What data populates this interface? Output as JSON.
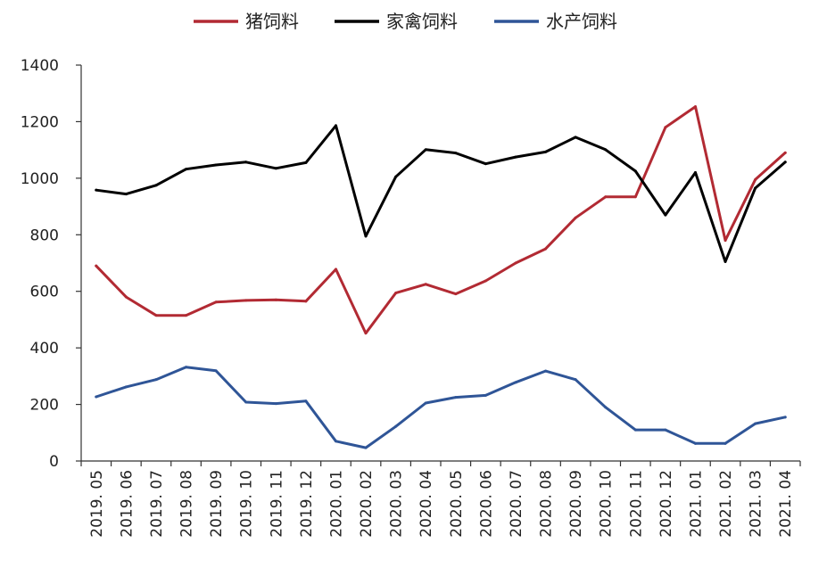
{
  "chart_data": {
    "type": "line",
    "title": "",
    "xlabel": "",
    "ylabel": "",
    "ylim": [
      0,
      1400
    ],
    "yticks": [
      0,
      200,
      400,
      600,
      800,
      1000,
      1200,
      1400
    ],
    "grid": false,
    "legend_position": "top-center",
    "categories": [
      "2019.05",
      "2019.06",
      "2019.07",
      "2019.08",
      "2019.09",
      "2019.10",
      "2019.11",
      "2019.12",
      "2020.01",
      "2020.02",
      "2020.03",
      "2020.04",
      "2020.05",
      "2020.06",
      "2020.07",
      "2020.08",
      "2020.09",
      "2020.10",
      "2020.11",
      "2020.12",
      "2021.01",
      "2021.02",
      "2021.03",
      "2021.04"
    ],
    "category_labels": [
      "2019. 05",
      "2019. 06",
      "2019. 07",
      "2019. 08",
      "2019. 09",
      "2019. 10",
      "2019. 11",
      "2019. 12",
      "2020. 01",
      "2020. 02",
      "2020. 03",
      "2020. 04",
      "2020. 05",
      "2020. 06",
      "2020. 07",
      "2020. 08",
      "2020. 09",
      "2020. 10",
      "2020. 11",
      "2020. 12",
      "2021. 01",
      "2021. 02",
      "2021. 03",
      "2021. 04"
    ],
    "series": [
      {
        "name": "猪饲料",
        "color": "#b22a33",
        "values": [
          690,
          580,
          515,
          515,
          562,
          568,
          570,
          565,
          678,
          452,
          594,
          625,
          591,
          637,
          700,
          750,
          860,
          934,
          934,
          1180,
          1253,
          780,
          995,
          1090
        ]
      },
      {
        "name": "家禽饲料",
        "color": "#000000",
        "values": [
          958,
          944,
          975,
          1032,
          1047,
          1057,
          1035,
          1055,
          1186,
          795,
          1005,
          1101,
          1089,
          1051,
          1075,
          1093,
          1145,
          1101,
          1025,
          870,
          1020,
          705,
          965,
          1057
        ]
      },
      {
        "name": "水产饲料",
        "color": "#2f5597",
        "values": [
          227,
          262,
          288,
          332,
          319,
          208,
          203,
          212,
          70,
          47,
          122,
          205,
          225,
          232,
          278,
          318,
          288,
          190,
          110,
          110,
          62,
          62,
          132,
          155
        ]
      }
    ]
  }
}
